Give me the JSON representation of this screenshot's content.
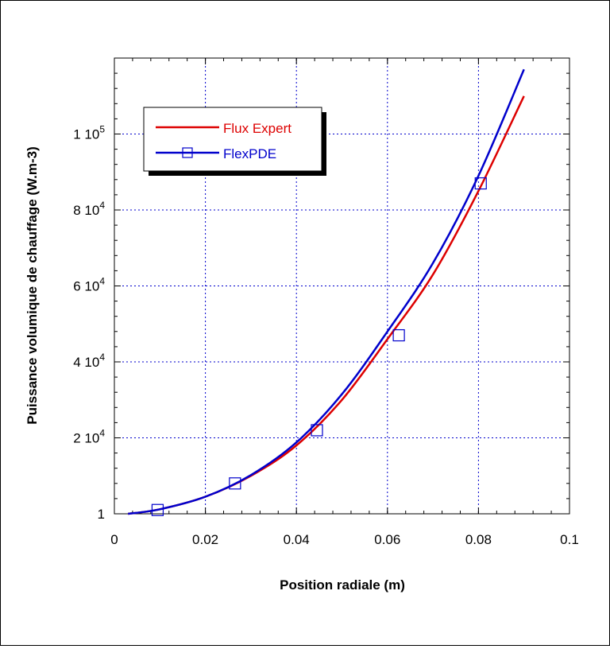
{
  "chart_data": {
    "type": "line",
    "title": "",
    "xlabel": "Position radiale (m)",
    "ylabel": "Puissance volumique de chauffage (W.m-3)",
    "xlim": [
      0,
      0.1
    ],
    "ylim": [
      0,
      120000
    ],
    "grid": true,
    "legend_position": "top-left",
    "x_ticks": [
      {
        "value": 0,
        "label": "0"
      },
      {
        "value": 0.02,
        "label": "0.02"
      },
      {
        "value": 0.04,
        "label": "0.04"
      },
      {
        "value": 0.06,
        "label": "0.06"
      },
      {
        "value": 0.08,
        "label": "0.08"
      },
      {
        "value": 0.1,
        "label": "0.1"
      }
    ],
    "y_ticks": [
      {
        "value": 0,
        "mantissa": "1",
        "exponent": ""
      },
      {
        "value": 20000,
        "mantissa": "2 10",
        "exponent": "4"
      },
      {
        "value": 40000,
        "mantissa": "4 10",
        "exponent": "4"
      },
      {
        "value": 60000,
        "mantissa": "6 10",
        "exponent": "4"
      },
      {
        "value": 80000,
        "mantissa": "8 10",
        "exponent": "4"
      },
      {
        "value": 100000,
        "mantissa": "1 10",
        "exponent": "5"
      }
    ],
    "series": [
      {
        "name": "Flux Expert",
        "color": "#dd0000",
        "marker": "none",
        "x": [
          0.003,
          0.01,
          0.02,
          0.03,
          0.04,
          0.05,
          0.06,
          0.07,
          0.08,
          0.09
        ],
        "y": [
          0,
          1200,
          4500,
          10000,
          18000,
          30000,
          46000,
          63000,
          85000,
          110000
        ]
      },
      {
        "name": "FlexPDE",
        "color": "#0000cc",
        "marker": "square",
        "x": [
          0.003,
          0.01,
          0.02,
          0.03,
          0.04,
          0.05,
          0.06,
          0.07,
          0.08,
          0.09
        ],
        "y": [
          0,
          1200,
          4500,
          10200,
          18800,
          31500,
          48000,
          66000,
          89000,
          117000
        ],
        "marker_x": [
          0.0095,
          0.0265,
          0.0445,
          0.0625,
          0.0805
        ],
        "marker_y": [
          1000,
          8000,
          22000,
          47000,
          87000
        ]
      }
    ]
  }
}
